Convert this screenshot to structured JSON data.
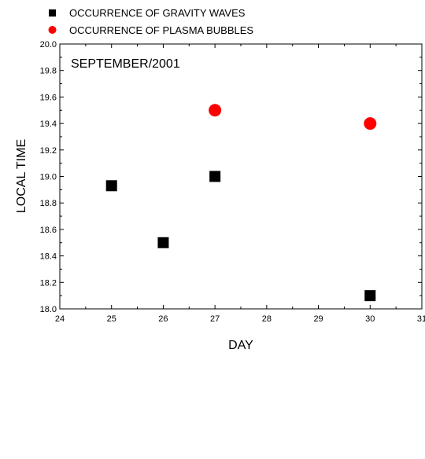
{
  "chart_data": {
    "type": "scatter",
    "annotation": "SEPTEMBER/2001",
    "xlabel": "DAY",
    "ylabel": "LOCAL TIME",
    "xlim": [
      24,
      31
    ],
    "ylim": [
      18.0,
      20.0
    ],
    "x_ticks": [
      "24",
      "25",
      "26",
      "27",
      "28",
      "29",
      "30",
      "31"
    ],
    "y_ticks": [
      "18.0",
      "18.2",
      "18.4",
      "18.6",
      "18.8",
      "19.0",
      "19.2",
      "19.4",
      "19.6",
      "19.8",
      "20.0"
    ],
    "legend_position": "top-left, above plot",
    "grid": false,
    "series": [
      {
        "name": "OCCURRENCE OF GRAVITY WAVES",
        "marker": "square",
        "color": "#000000",
        "x": [
          25,
          26,
          27,
          30
        ],
        "y": [
          18.93,
          18.5,
          19.0,
          18.1
        ]
      },
      {
        "name": "OCCURRENCE OF PLASMA BUBBLES",
        "marker": "circle",
        "color": "#ff0000",
        "x": [
          27,
          30
        ],
        "y": [
          19.5,
          19.4
        ]
      }
    ]
  }
}
